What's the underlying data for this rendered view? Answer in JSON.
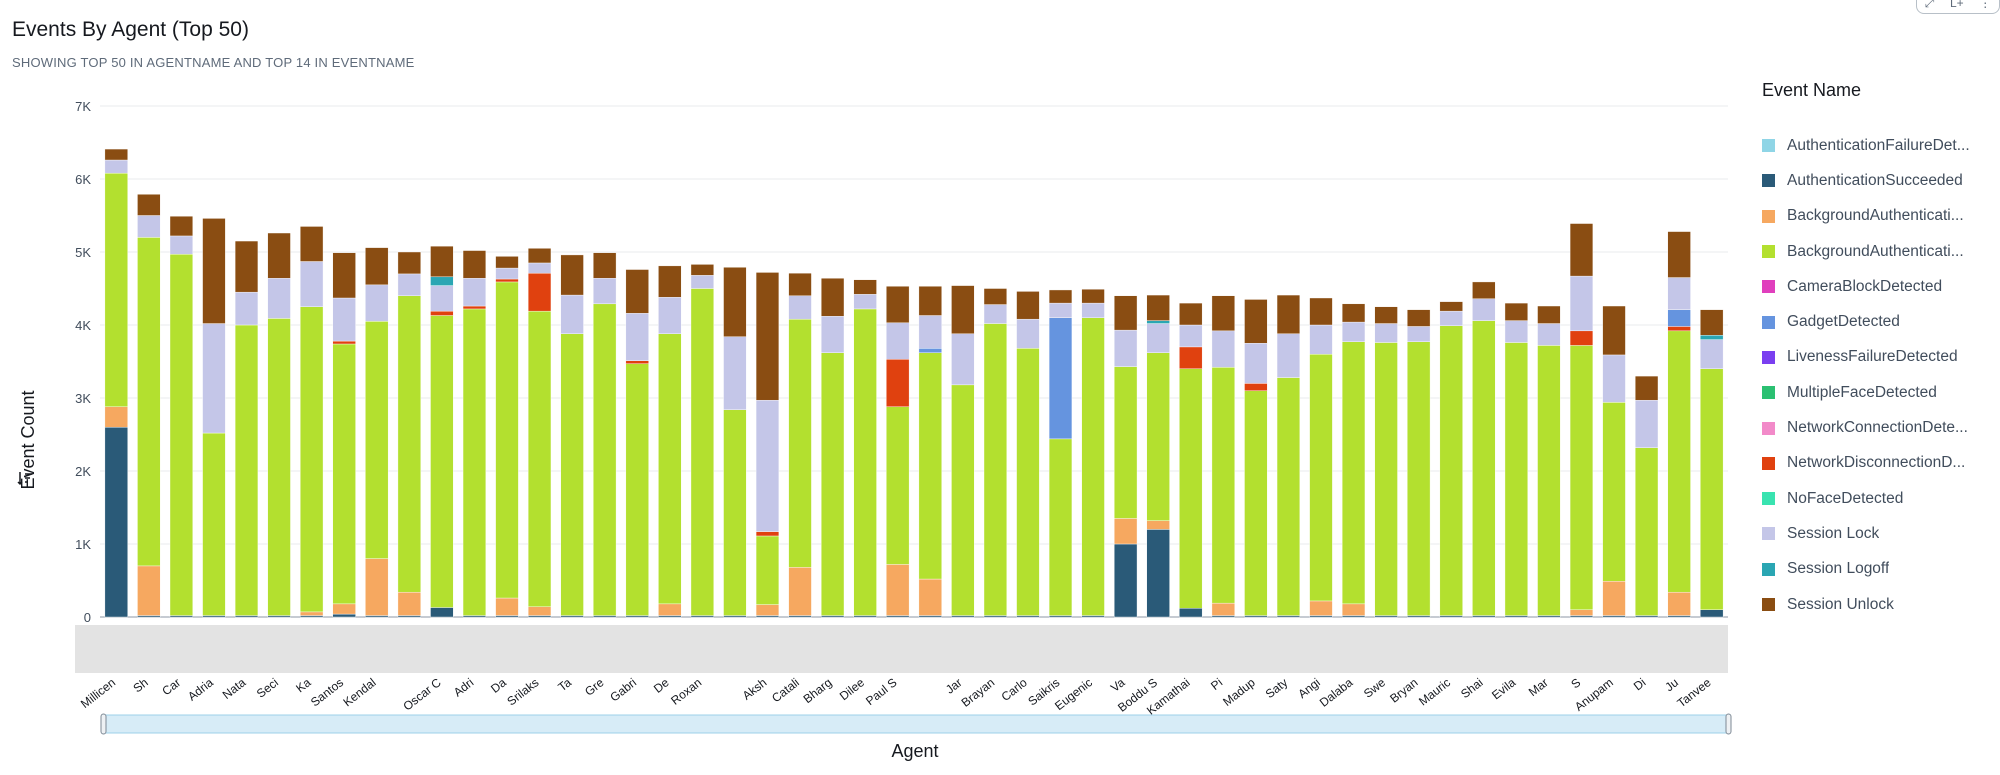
{
  "title": "Events By Agent (Top 50)",
  "subtitle": "SHOWING TOP 50 IN AGENTNAME AND TOP 14 IN EVENTNAME",
  "toolbar": {
    "icons": [
      "expand-icon",
      "menu-icon",
      "more-icon"
    ],
    "menu_label": "L+",
    "more_label": "⋮",
    "expand_label": "⤢"
  },
  "legend": {
    "title": "Event Name",
    "items": [
      {
        "label": "AuthenticationFailureDet...",
        "color": "#8fd5e6"
      },
      {
        "label": "AuthenticationSucceeded",
        "color": "#2a5a78"
      },
      {
        "label": "BackgroundAuthenticati...",
        "color": "#f6a860"
      },
      {
        "label": "BackgroundAuthenticati...",
        "color": "#b3e02f"
      },
      {
        "label": "CameraBlockDetected",
        "color": "#e03fbd"
      },
      {
        "label": "GadgetDetected",
        "color": "#6594df"
      },
      {
        "label": "LivenessFailureDetected",
        "color": "#7a3ff0"
      },
      {
        "label": "MultipleFaceDetected",
        "color": "#2bc072"
      },
      {
        "label": "NetworkConnectionDete...",
        "color": "#f28ac9"
      },
      {
        "label": "NetworkDisconnectionD...",
        "color": "#e0410f"
      },
      {
        "label": "NoFaceDetected",
        "color": "#39e3b0"
      },
      {
        "label": "Session Lock",
        "color": "#c4c6e8"
      },
      {
        "label": "Session Logoff",
        "color": "#2aa6b3"
      },
      {
        "label": "Session Unlock",
        "color": "#8a4d12"
      }
    ]
  },
  "chart_data": {
    "type": "bar",
    "stacked": true,
    "ylabel": "Event Count",
    "xlabel": "Agent",
    "ylim": [
      0,
      7000
    ],
    "yticks": [
      "0",
      "1K",
      "2K",
      "3K",
      "4K",
      "5K",
      "6K",
      "7K"
    ],
    "grid": true,
    "legend_position": "right",
    "categories": [
      "Millicen",
      "Sh",
      "Car",
      "Adria",
      "Nata",
      "Seci",
      "Ka",
      "Santos",
      "Kendal",
      "",
      "Oscar C",
      "Adri",
      "Da",
      "Srilaks",
      "Ta",
      "Gre",
      "Gabri",
      "De",
      "Roxan",
      "",
      "Aksh",
      "Catali",
      "Bharg",
      "Dilee",
      "Paul S",
      "",
      "Jar",
      "Brayan",
      "Carlo",
      "Saikris",
      "Eugenic",
      "Va",
      "Boddu S",
      "Kamathai",
      "Pi",
      "Madup",
      "Saty",
      "Angi",
      "Dalaba",
      "Swe",
      "Bryan",
      "Mauric",
      "Shai",
      "Evila",
      "Mar",
      "S",
      "Anupam",
      "Di",
      "Ju",
      "Tanvee"
    ],
    "series": [
      {
        "name": "AuthenticationSucceeded",
        "values": [
          2600,
          20,
          20,
          20,
          20,
          20,
          20,
          40,
          20,
          20,
          130,
          20,
          20,
          20,
          20,
          20,
          20,
          20,
          20,
          20,
          20,
          20,
          20,
          20,
          20,
          20,
          20,
          20,
          20,
          20,
          20,
          1000,
          1200,
          120,
          20,
          20,
          20,
          20,
          20,
          20,
          20,
          20,
          20,
          20,
          20,
          20,
          20,
          20,
          20,
          100
        ]
      },
      {
        "name": "BackgroundAuthentication (orange)",
        "values": [
          280,
          680,
          0,
          0,
          0,
          0,
          50,
          140,
          780,
          320,
          0,
          0,
          240,
          120,
          0,
          0,
          0,
          160,
          0,
          0,
          150,
          660,
          0,
          0,
          700,
          500,
          0,
          0,
          0,
          0,
          0,
          350,
          120,
          0,
          170,
          0,
          0,
          200,
          160,
          0,
          0,
          0,
          0,
          0,
          0,
          80,
          470,
          0,
          320,
          0
        ]
      },
      {
        "name": "BackgroundAuthentication (green)",
        "values": [
          3200,
          4500,
          4950,
          2500,
          3980,
          4070,
          4180,
          3560,
          3250,
          4060,
          4000,
          4200,
          4330,
          4050,
          3860,
          4270,
          3450,
          3700,
          4480,
          2820,
          940,
          3400,
          3600,
          4200,
          2160,
          3100,
          3160,
          4000,
          3660,
          2420,
          4080,
          2080,
          2300,
          3280,
          3230,
          3080,
          3260,
          3380,
          3590,
          3740,
          3750,
          3970,
          4040,
          3740,
          3700,
          3620,
          2450,
          2300,
          3580,
          3300
        ]
      },
      {
        "name": "NetworkDisconnectionDetected",
        "values": [
          0,
          0,
          0,
          0,
          0,
          0,
          0,
          40,
          0,
          0,
          60,
          40,
          40,
          520,
          0,
          0,
          40,
          0,
          0,
          0,
          60,
          0,
          0,
          0,
          650,
          0,
          0,
          0,
          0,
          0,
          0,
          0,
          0,
          300,
          0,
          100,
          0,
          0,
          0,
          0,
          0,
          0,
          0,
          0,
          0,
          200,
          0,
          0,
          60,
          0
        ]
      },
      {
        "name": "GadgetDetected",
        "values": [
          0,
          0,
          0,
          0,
          0,
          0,
          0,
          0,
          0,
          0,
          0,
          0,
          0,
          0,
          0,
          0,
          0,
          0,
          0,
          0,
          0,
          0,
          0,
          0,
          0,
          60,
          0,
          0,
          0,
          1660,
          0,
          0,
          0,
          0,
          0,
          0,
          0,
          0,
          0,
          0,
          0,
          0,
          0,
          0,
          0,
          0,
          0,
          0,
          230,
          0
        ]
      },
      {
        "name": "Session Lock",
        "values": [
          180,
          300,
          250,
          1500,
          450,
          550,
          620,
          590,
          500,
          300,
          350,
          380,
          150,
          140,
          530,
          350,
          650,
          500,
          180,
          1000,
          1800,
          320,
          500,
          200,
          500,
          450,
          700,
          260,
          400,
          200,
          200,
          500,
          400,
          300,
          500,
          550,
          600,
          400,
          270,
          260,
          210,
          200,
          300,
          300,
          300,
          750,
          650,
          650,
          440,
          400
        ]
      },
      {
        "name": "Session Logoff",
        "values": [
          0,
          0,
          0,
          0,
          0,
          0,
          0,
          0,
          0,
          0,
          120,
          0,
          0,
          0,
          0,
          0,
          0,
          0,
          0,
          0,
          0,
          0,
          0,
          0,
          0,
          0,
          0,
          0,
          0,
          0,
          0,
          0,
          40,
          0,
          0,
          0,
          0,
          0,
          0,
          0,
          0,
          0,
          0,
          0,
          0,
          0,
          0,
          0,
          0,
          60
        ]
      },
      {
        "name": "Session Unlock",
        "values": [
          150,
          290,
          270,
          1440,
          700,
          620,
          480,
          620,
          510,
          300,
          420,
          380,
          160,
          200,
          550,
          350,
          600,
          430,
          150,
          950,
          1750,
          310,
          520,
          200,
          500,
          400,
          660,
          220,
          380,
          180,
          190,
          470,
          350,
          300,
          480,
          600,
          530,
          370,
          250,
          230,
          230,
          130,
          230,
          240,
          240,
          720,
          670,
          330,
          630,
          350
        ]
      }
    ]
  }
}
